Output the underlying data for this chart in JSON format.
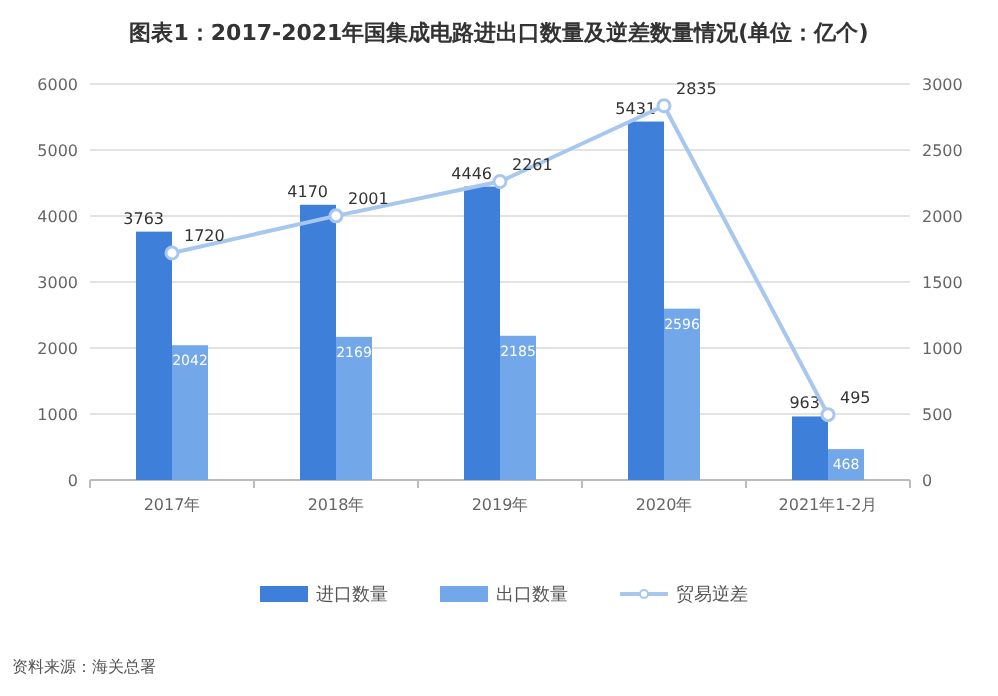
{
  "chart_data": {
    "type": "bar",
    "title": "图表1：2017-2021年国集成电路进出口数量及逆差数量情况(单位：亿个)",
    "categories": [
      "2017年",
      "2018年",
      "2019年",
      "2020年",
      "2021年1-2月"
    ],
    "series": [
      {
        "name": "进口数量",
        "color": "#3d7fd9",
        "values": [
          3763,
          4170,
          4446,
          5431,
          963
        ]
      },
      {
        "name": "出口数量",
        "color": "#72a7ea",
        "values": [
          2042,
          2169,
          2185,
          2596,
          468
        ]
      },
      {
        "name": "贸易逆差",
        "type": "line",
        "axis": "y2",
        "color": "#a8c7ef",
        "marker": "circle",
        "values": [
          1720,
          2001,
          2261,
          2835,
          495
        ]
      }
    ],
    "ylim": [
      0,
      6000
    ],
    "yticks": [
      0,
      1000,
      2000,
      3000,
      4000,
      5000,
      6000
    ],
    "y2lim": [
      0,
      3000
    ],
    "y2ticks": [
      0,
      500,
      1000,
      1500,
      2000,
      2500,
      3000
    ],
    "grid": "y",
    "legend": "bottom",
    "data_labels": true,
    "annotations": [
      "资料来源：海关总署"
    ]
  }
}
